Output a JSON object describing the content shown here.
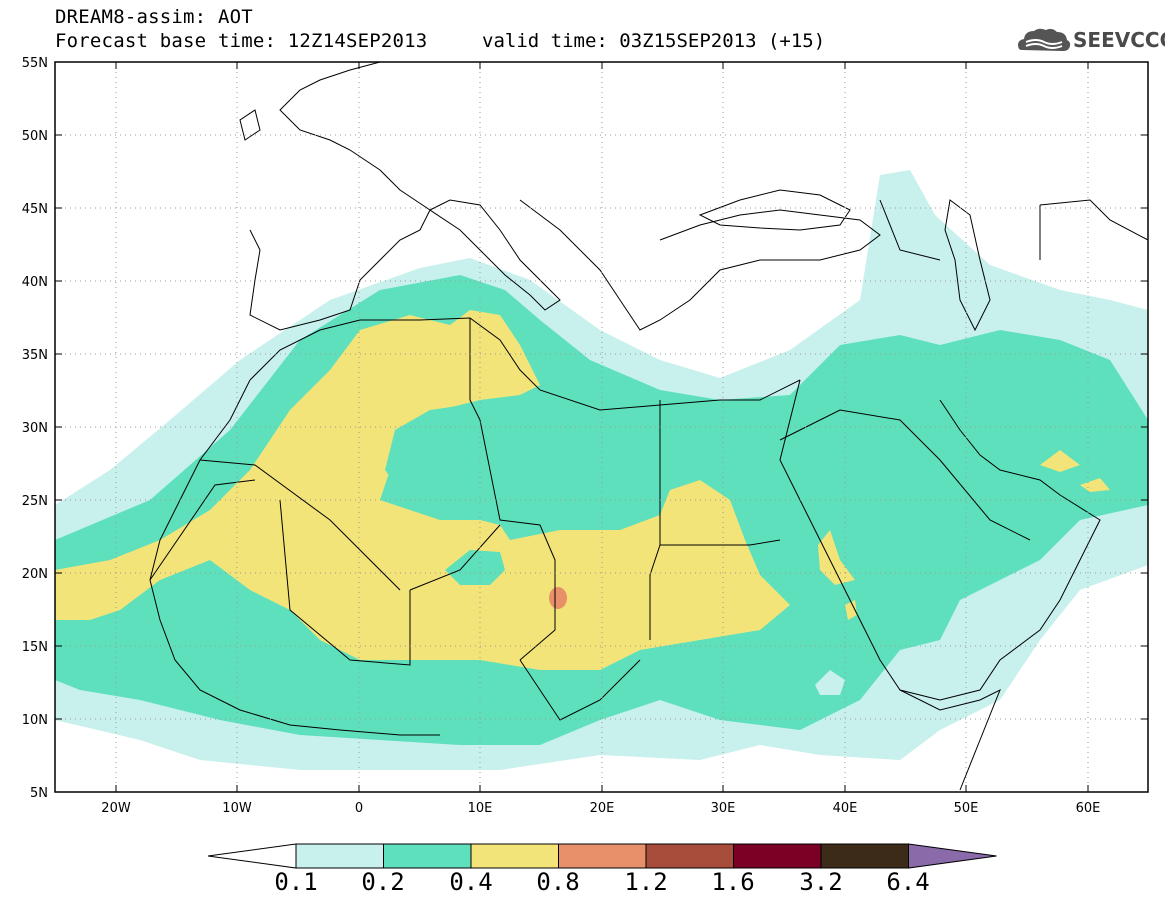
{
  "header": {
    "title_line1": "DREAM8-assim: AOT",
    "title_line2": "Forecast base time: 12Z14SEP2013",
    "valid_time": "valid time: 03Z15SEP2013 (+15)",
    "logo_text": "SEEVCCC"
  },
  "map": {
    "lon_range": [
      -25,
      65
    ],
    "lat_range": [
      5,
      55
    ],
    "lat_labels": [
      "55N",
      "50N",
      "45N",
      "40N",
      "35N",
      "30N",
      "25N",
      "20N",
      "15N",
      "10N",
      "5N"
    ],
    "lon_labels": [
      "20W",
      "10W",
      "0",
      "10E",
      "20E",
      "30E",
      "40E",
      "50E",
      "60E"
    ]
  },
  "colorbar": {
    "labels": [
      "0.1",
      "0.2",
      "0.4",
      "0.8",
      "1.2",
      "1.6",
      "3.2",
      "6.4"
    ],
    "colors": [
      "#ffffff",
      "#c8f0ec",
      "#5ee0bc",
      "#f3e479",
      "#e8906a",
      "#a84d3c",
      "#7a0026",
      "#3d2b1a",
      "#8a6aa8"
    ]
  }
}
